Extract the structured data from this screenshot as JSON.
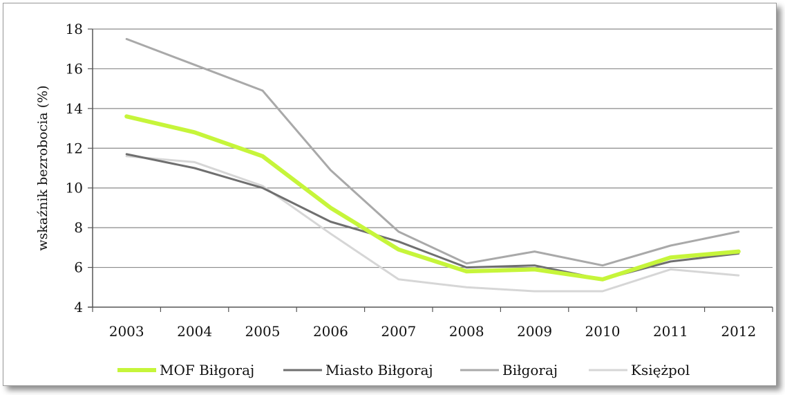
{
  "chart_data": {
    "type": "line",
    "x": [
      "2003",
      "2004",
      "2005",
      "2006",
      "2007",
      "2008",
      "2009",
      "2010",
      "2011",
      "2012"
    ],
    "ylabel": "wskaźnik bezrobocia (%)",
    "xlabel": "",
    "ylim": [
      4,
      18
    ],
    "yticks": [
      4,
      6,
      8,
      10,
      12,
      14,
      16,
      18
    ],
    "grid": true,
    "legend_position": "bottom",
    "series": [
      {
        "name": "MOF Biłgoraj",
        "color": "#c6f53a",
        "width": 6,
        "values": [
          13.6,
          12.8,
          11.6,
          9.0,
          6.9,
          5.8,
          5.9,
          5.4,
          6.5,
          6.8
        ]
      },
      {
        "name": "Miasto Biłgoraj",
        "color": "#6f6f6f",
        "width": 3,
        "values": [
          11.7,
          11.0,
          10.0,
          8.3,
          7.3,
          6.0,
          6.1,
          5.4,
          6.3,
          6.7
        ]
      },
      {
        "name": "Biłgoraj",
        "color": "#a9a9a9",
        "width": 3,
        "values": [
          17.5,
          16.2,
          14.9,
          10.9,
          7.8,
          6.2,
          6.8,
          6.1,
          7.1,
          7.8
        ]
      },
      {
        "name": "Księżpol",
        "color": "#d6d6d6",
        "width": 3,
        "values": [
          11.6,
          11.3,
          10.1,
          7.7,
          5.4,
          5.0,
          4.8,
          4.8,
          5.9,
          5.6
        ]
      }
    ]
  }
}
